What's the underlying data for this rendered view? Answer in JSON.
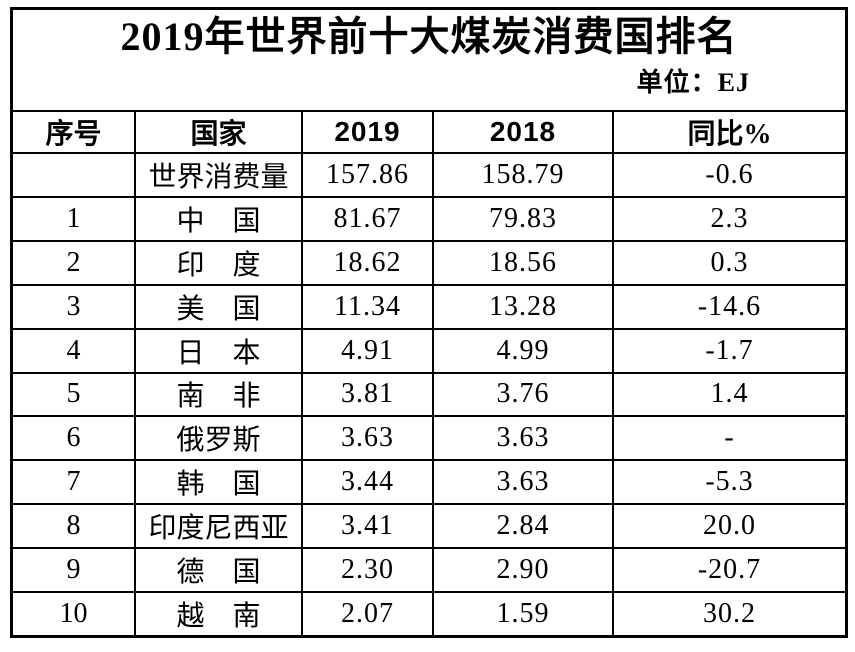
{
  "title": "2019年世界前十大煤炭消费国排名",
  "unit_label": "单位：EJ",
  "colors": {
    "background": "#ffffff",
    "border": "#000000",
    "text": "#000000"
  },
  "table": {
    "headers": {
      "rank": "序号",
      "country": "国家",
      "y2019": "2019",
      "y2018": "2018",
      "yoy": "同比%"
    },
    "rows": [
      {
        "rank": "",
        "country": "世界消费量",
        "y2019": "157.86",
        "y2018": "158.79",
        "yoy": "-0.6"
      },
      {
        "rank": "1",
        "country": "中　国",
        "y2019": "81.67",
        "y2018": "79.83",
        "yoy": "2.3"
      },
      {
        "rank": "2",
        "country": "印　度",
        "y2019": "18.62",
        "y2018": "18.56",
        "yoy": "0.3"
      },
      {
        "rank": "3",
        "country": "美　国",
        "y2019": "11.34",
        "y2018": "13.28",
        "yoy": "-14.6"
      },
      {
        "rank": "4",
        "country": "日　本",
        "y2019": "4.91",
        "y2018": "4.99",
        "yoy": "-1.7"
      },
      {
        "rank": "5",
        "country": "南　非",
        "y2019": "3.81",
        "y2018": "3.76",
        "yoy": "1.4"
      },
      {
        "rank": "6",
        "country": "俄罗斯",
        "y2019": "3.63",
        "y2018": "3.63",
        "yoy": "-"
      },
      {
        "rank": "7",
        "country": "韩　国",
        "y2019": "3.44",
        "y2018": "3.63",
        "yoy": "-5.3"
      },
      {
        "rank": "8",
        "country": "印度尼西亚",
        "y2019": "3.41",
        "y2018": "2.84",
        "yoy": "20.0"
      },
      {
        "rank": "9",
        "country": "德　国",
        "y2019": "2.30",
        "y2018": "2.90",
        "yoy": "-20.7"
      },
      {
        "rank": "10",
        "country": "越　南",
        "y2019": "2.07",
        "y2018": "1.59",
        "yoy": "30.2"
      }
    ]
  }
}
